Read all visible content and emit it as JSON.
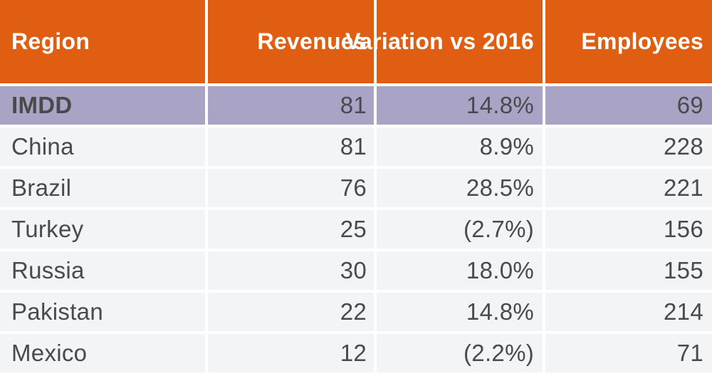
{
  "table": {
    "headers": [
      "Region",
      "Revenues",
      "Variation vs 2016",
      "Employees"
    ],
    "rows": [
      {
        "region": "IMDD",
        "revenues": "81",
        "variation": "14.8%",
        "employees": "69",
        "highlight": true
      },
      {
        "region": "China",
        "revenues": "81",
        "variation": "8.9%",
        "employees": "228"
      },
      {
        "region": "Brazil",
        "revenues": "76",
        "variation": "28.5%",
        "employees": "221"
      },
      {
        "region": "Turkey",
        "revenues": "25",
        "variation": "(2.7%)",
        "employees": "156"
      },
      {
        "region": "Russia",
        "revenues": "30",
        "variation": "18.0%",
        "employees": "155"
      },
      {
        "region": "Pakistan",
        "revenues": "22",
        "variation": "14.8%",
        "employees": "214"
      },
      {
        "region": "Mexico",
        "revenues": "12",
        "variation": "(2.2%)",
        "employees": "71"
      }
    ]
  },
  "colors": {
    "header_bg": "#e05e12",
    "highlight_bg": "#a9a3c6",
    "row_bg": "#f3f4f6",
    "text": "#4a4a4a"
  }
}
